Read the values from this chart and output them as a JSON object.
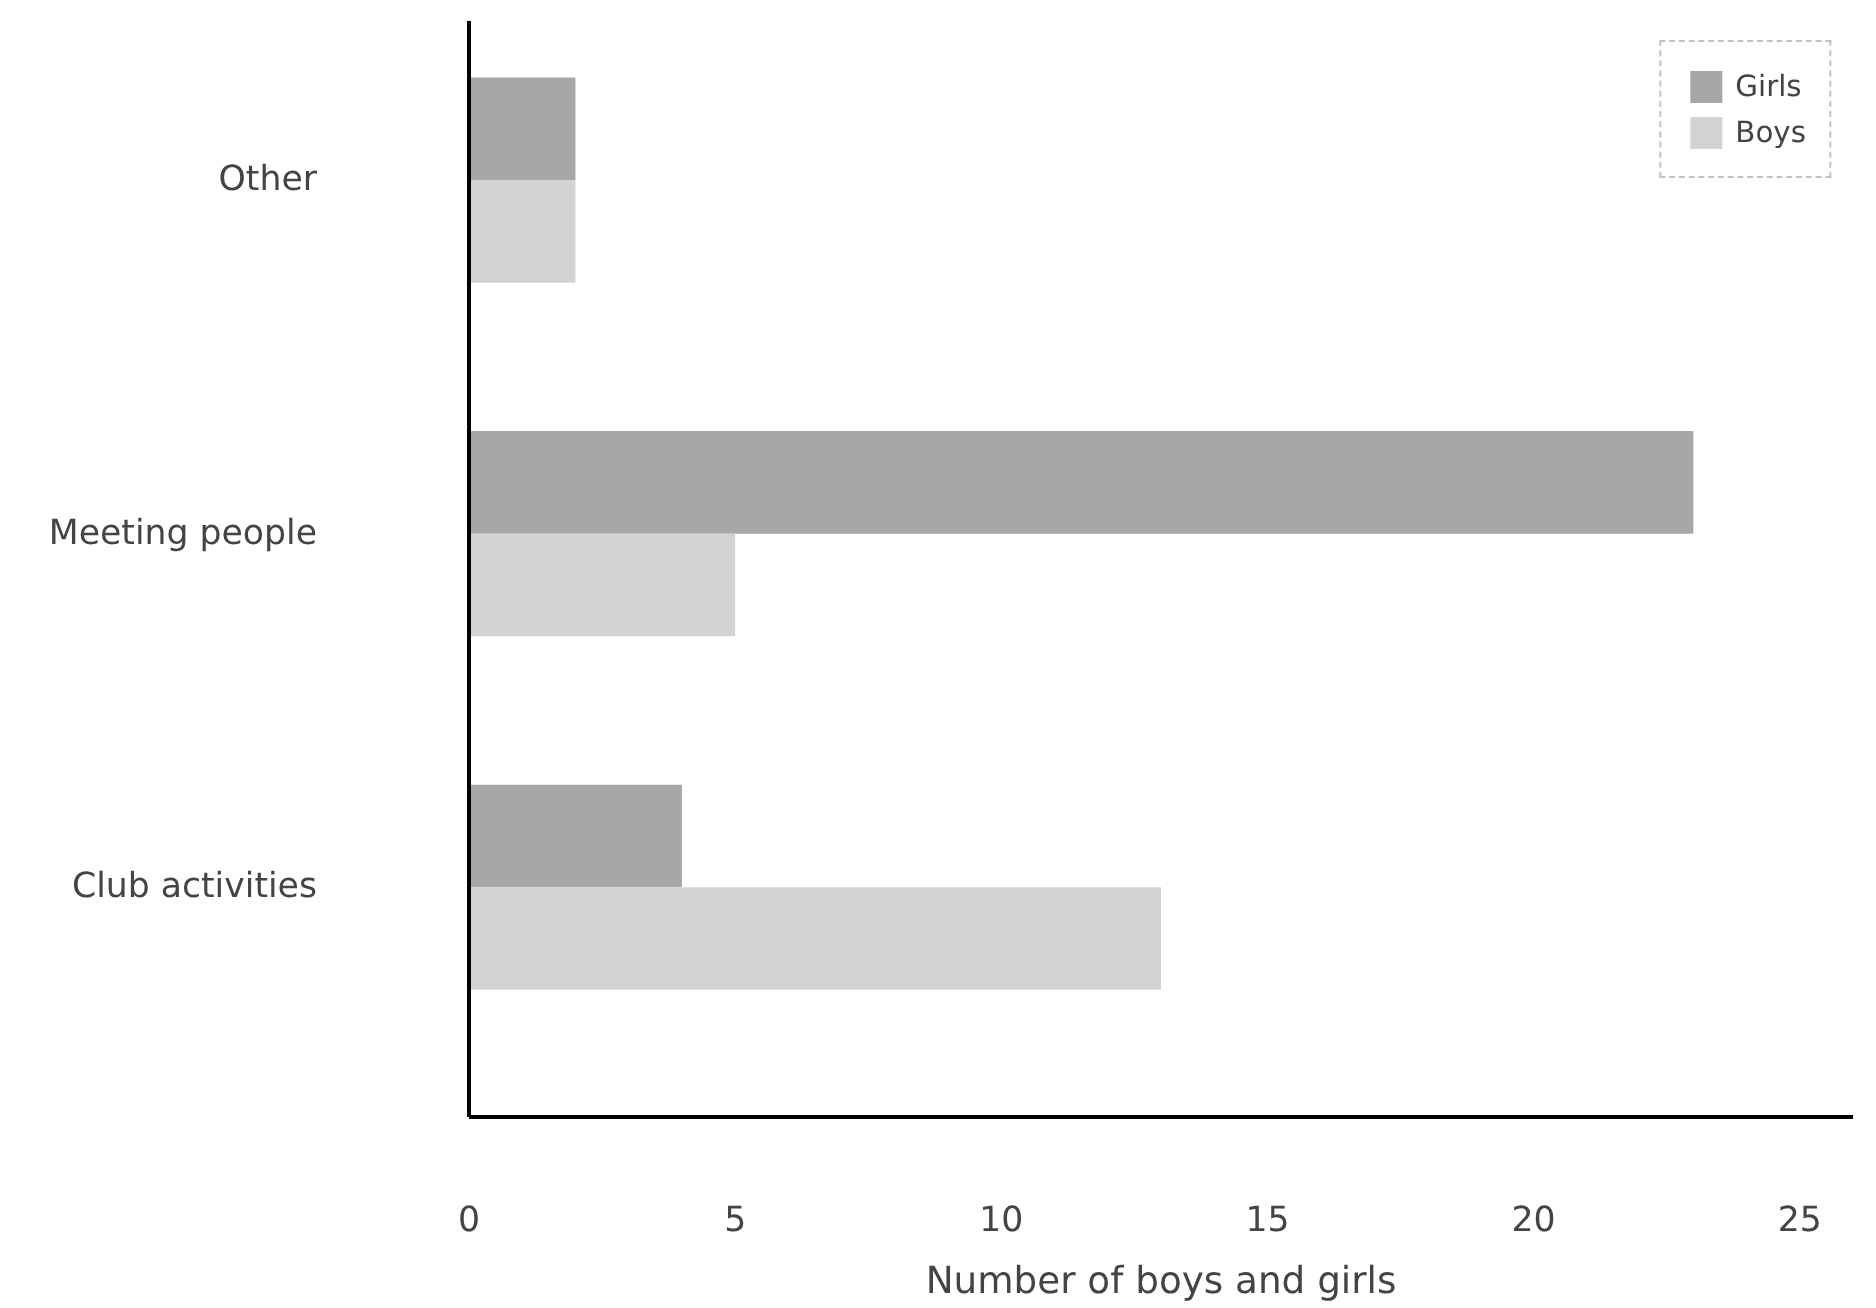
{
  "chart_data": {
    "type": "bar",
    "orientation": "horizontal",
    "xlabel": "Number of boys and girls",
    "categories": [
      "Other",
      "Meeting people",
      "Club activities"
    ],
    "series": [
      {
        "name": "Girls",
        "color": "#a7a7aa",
        "values": [
          2,
          23,
          4
        ]
      },
      {
        "name": "Boys",
        "color": "#d3d3d5",
        "values": [
          2,
          5,
          13
        ]
      }
    ],
    "xlim": [
      0,
      26
    ],
    "xticks": [
      0,
      5,
      10,
      15,
      20,
      25
    ],
    "grid": false,
    "legend": "top right"
  }
}
